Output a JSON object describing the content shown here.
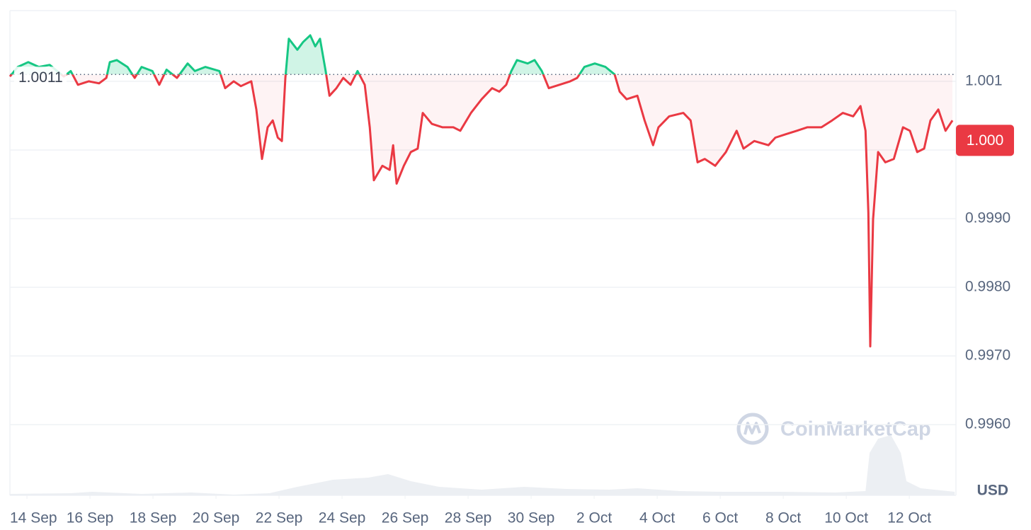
{
  "chart_data": {
    "type": "line",
    "x": [
      -0.54,
      -0.29,
      0.04,
      0.38,
      0.72,
      1.17,
      1.39,
      1.62,
      1.96,
      2.29,
      2.52,
      2.63,
      2.85,
      3.19,
      3.42,
      3.64,
      3.98,
      4.2,
      4.43,
      4.76,
      5.1,
      5.33,
      5.66,
      6.11,
      6.29,
      6.56,
      6.79,
      7.12,
      7.28,
      7.46,
      7.64,
      7.8,
      7.96,
      8.09,
      8.2,
      8.31,
      8.58,
      8.76,
      8.99,
      9.15,
      9.3,
      9.48,
      9.6,
      9.82,
      10.04,
      10.27,
      10.49,
      10.72,
      10.88,
      11.01,
      11.28,
      11.51,
      11.62,
      11.73,
      11.96,
      12.18,
      12.4,
      12.56,
      12.85,
      13.19,
      13.53,
      13.75,
      14.09,
      14.43,
      14.76,
      14.99,
      15.21,
      15.37,
      15.55,
      15.89,
      16.11,
      16.34,
      16.56,
      16.9,
      17.24,
      17.46,
      17.69,
      18.02,
      18.36,
      18.65,
      18.81,
      19.03,
      19.37,
      19.6,
      19.87,
      20.04,
      20.38,
      20.83,
      21.06,
      21.28,
      21.51,
      21.84,
      22.18,
      22.52,
      22.74,
      23.08,
      23.53,
      23.75,
      24.09,
      24.43,
      24.76,
      25.21,
      25.55,
      25.89,
      26.22,
      26.45,
      26.61,
      26.7,
      26.76,
      26.85,
      27.01,
      27.24,
      27.51,
      27.8,
      28.02,
      28.25,
      28.47,
      28.67,
      28.92,
      29.15,
      29.37
    ],
    "values": [
      1.00107,
      1.00121,
      1.00128,
      1.00121,
      1.00124,
      1.00107,
      1.00115,
      1.00095,
      1.001,
      1.00097,
      1.00105,
      1.00128,
      1.00131,
      1.00121,
      1.00105,
      1.00121,
      1.00115,
      1.00095,
      1.00117,
      1.00105,
      1.00126,
      1.00115,
      1.00121,
      1.00115,
      1.0009,
      1.001,
      1.00093,
      1.001,
      1.00059,
      0.99987,
      1.00033,
      1.00043,
      1.00018,
      1.00013,
      1.00105,
      1.00162,
      1.00146,
      1.00157,
      1.00167,
      1.00151,
      1.00162,
      1.00115,
      1.00079,
      1.0009,
      1.00105,
      1.00095,
      1.00115,
      1.00095,
      1.00033,
      0.99956,
      0.99977,
      0.99971,
      1.00007,
      0.99951,
      0.99977,
      0.99997,
      1.00002,
      1.00054,
      1.00038,
      1.00033,
      1.00033,
      1.00028,
      1.00054,
      1.00074,
      1.0009,
      1.00085,
      1.00095,
      1.00115,
      1.00131,
      1.00126,
      1.00131,
      1.00115,
      1.0009,
      1.00095,
      1.001,
      1.00105,
      1.00121,
      1.00126,
      1.00121,
      1.0011,
      1.00085,
      1.00074,
      1.00079,
      1.00043,
      1.00007,
      1.00033,
      1.00049,
      1.00054,
      1.00043,
      0.99982,
      0.99987,
      0.99977,
      0.99997,
      1.00028,
      1.00002,
      1.00013,
      1.00007,
      1.00018,
      1.00023,
      1.00028,
      1.00033,
      1.00033,
      1.00043,
      1.00054,
      1.00049,
      1.00064,
      1.00028,
      0.99909,
      0.99714,
      0.99899,
      0.99997,
      0.99982,
      0.99987,
      1.00033,
      1.00028,
      0.99997,
      1.00002,
      1.00043,
      1.00059,
      1.00028,
      1.00043
    ],
    "up_color": "#16c784",
    "down_color": "#ea3943",
    "baseline": {
      "value": 1.0011,
      "label": "1.0011"
    },
    "current_price": {
      "value": 1.00014,
      "label": "1.000"
    },
    "volume": {
      "axis": "y2",
      "color": "#eceff3",
      "x": [
        -0.54,
        1.39,
        2.07,
        3.64,
        5.21,
        6.56,
        7.69,
        8.58,
        9.71,
        10.83,
        11.46,
        12.18,
        13.08,
        14.43,
        15.78,
        17.12,
        18.47,
        19.37,
        20.72,
        22.07,
        23.87,
        25.66,
        26.61,
        26.74,
        27.01,
        27.42,
        27.73,
        27.91,
        28.36,
        29.44
      ],
      "values": [
        2,
        3,
        5,
        2,
        4,
        1,
        3,
        12,
        22,
        25,
        30,
        20,
        12,
        8,
        12,
        9,
        8,
        10,
        6,
        5,
        5,
        4,
        6,
        60,
        80,
        85,
        60,
        20,
        10,
        5
      ]
    },
    "xlim": [
      -0.54,
      29.48
    ],
    "xticks": [
      {
        "value": 0,
        "label": "14 Sep"
      },
      {
        "value": 2,
        "label": "16 Sep"
      },
      {
        "value": 4,
        "label": "18 Sep"
      },
      {
        "value": 6,
        "label": "20 Sep"
      },
      {
        "value": 8,
        "label": "22 Sep"
      },
      {
        "value": 10,
        "label": "24 Sep"
      },
      {
        "value": 12,
        "label": "26 Sep"
      },
      {
        "value": 14,
        "label": "28 Sep"
      },
      {
        "value": 16,
        "label": "30 Sep"
      },
      {
        "value": 18,
        "label": "2 Oct"
      },
      {
        "value": 20,
        "label": "4 Oct"
      },
      {
        "value": 22,
        "label": "6 Oct"
      },
      {
        "value": 24,
        "label": "8 Oct"
      },
      {
        "value": 26,
        "label": "10 Oct"
      },
      {
        "value": 28,
        "label": "12 Oct"
      }
    ],
    "ylim": [
      0.99497,
      1.00203
    ],
    "yticks": [
      {
        "value": 0.996,
        "label": "0.9960"
      },
      {
        "value": 0.997,
        "label": "0.9970"
      },
      {
        "value": 0.998,
        "label": "0.9980"
      },
      {
        "value": 0.999,
        "label": "0.9990"
      },
      {
        "value": 1.0,
        "label": "1.000"
      },
      1.001
    ],
    "y2lim": [
      0,
      100
    ],
    "y_axis_label": "USD",
    "watermark": "CoinMarketCap",
    "grid": true
  }
}
